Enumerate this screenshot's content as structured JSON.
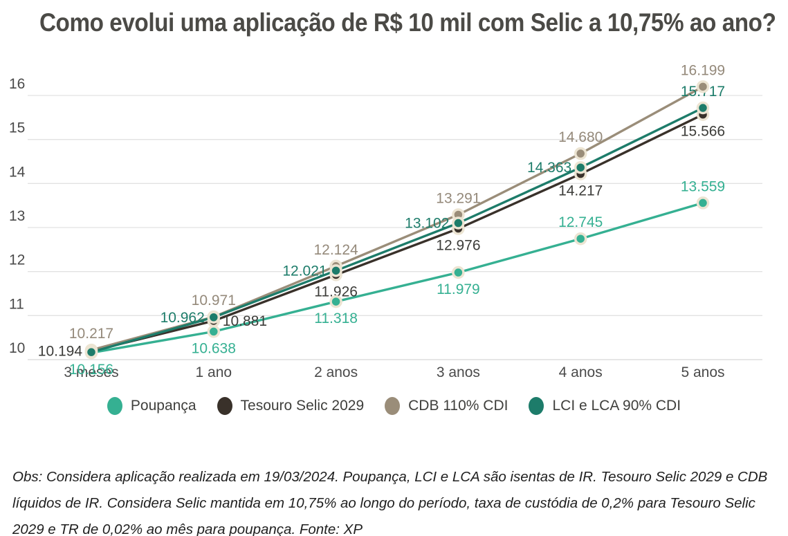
{
  "title": "Como evolui uma aplicação de R$ 10 mil com Selic a 10,75% ao ano?",
  "note": "Obs: Considera aplicação realizada em 19/03/2024. Poupança, LCI e LCA são isentas de IR. Tesouro Selic 2029 e CDB líquidos de IR. Considera Selic mantida em 10,75% ao longo do período, taxa de custódia de 0,2% para Tesouro Selic 2029 e TR de 0,02% ao mês para poupança. Fonte: XP",
  "chart_data": {
    "type": "line",
    "title": "Como evolui uma aplicação de R$ 10 mil com Selic a 10,75% ao ano?",
    "categories": [
      "3 meses",
      "1 ano",
      "2 anos",
      "3 anos",
      "4 anos",
      "5 anos"
    ],
    "yticks": [
      "10",
      "11",
      "12",
      "13",
      "14",
      "15",
      "16"
    ],
    "ylim": [
      10,
      16.5
    ],
    "grid": true,
    "legend_position": "bottom",
    "grid_color": "#e2e2e2",
    "axis_label_color": "#4a4a4a",
    "marker_ring_color": "#ece4d2",
    "series": [
      {
        "name": "Poupança",
        "color": "#35b092",
        "values": [
          10.156,
          10.638,
          11.318,
          11.979,
          12.745,
          13.559
        ],
        "labels": [
          "10.156",
          "10.638",
          "11.318",
          "11.979",
          "12.745",
          "13.559"
        ],
        "label_positions": [
          "below",
          "below",
          "below",
          "below",
          "above",
          "above"
        ]
      },
      {
        "name": "Tesouro Selic 2029",
        "color": "#39312a",
        "label_color": "#3c3c39",
        "values": [
          10.194,
          10.881,
          11.926,
          12.976,
          14.217,
          15.566
        ],
        "labels": [
          "10.194",
          "10.881",
          "11.926",
          "12.976",
          "14.217",
          "15.566"
        ],
        "label_positions": [
          "left",
          "right",
          "below",
          "below",
          "below",
          "below"
        ]
      },
      {
        "name": "CDB 110% CDI",
        "color": "#9a8d79",
        "label_color": "#94897a",
        "values": [
          10.217,
          10.971,
          12.124,
          13.291,
          14.68,
          16.199
        ],
        "labels": [
          "10.217",
          "10.971",
          "12.124",
          "13.291",
          "14.680",
          "16.199"
        ],
        "label_positions": [
          "above",
          "above",
          "above",
          "above",
          "above",
          "above"
        ]
      },
      {
        "name": "LCI e LCA 90% CDI",
        "color": "#1d7c6a",
        "values": [
          10.17,
          10.962,
          12.021,
          13.102,
          14.363,
          15.717
        ],
        "labels": [
          "",
          "10.962",
          "12.021",
          "13.102",
          "14.363",
          "15.717"
        ],
        "label_positions": [
          "none",
          "left",
          "left",
          "left",
          "left",
          "above"
        ]
      }
    ]
  }
}
